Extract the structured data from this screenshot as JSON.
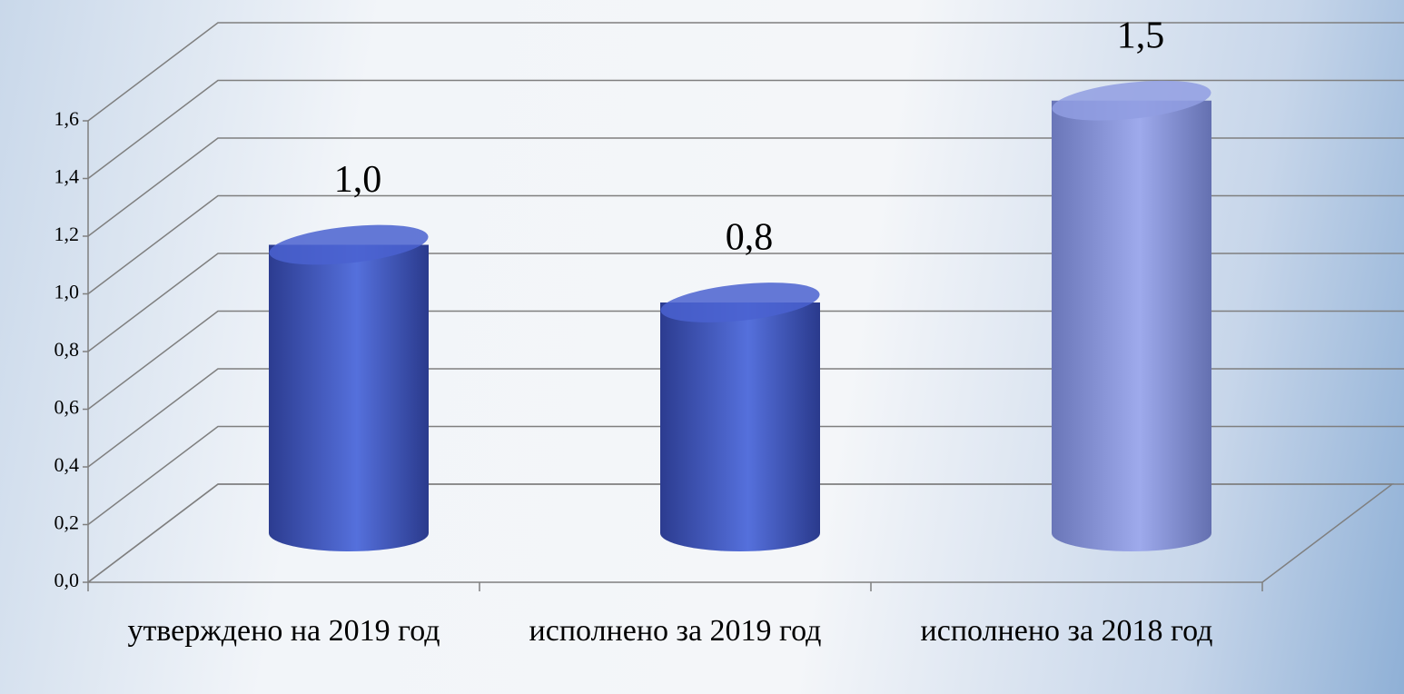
{
  "chart_data": {
    "type": "bar3d",
    "categories": [
      "утверждено на 2019 год",
      "исполнено за 2019 год",
      "исполнено за 2018 год"
    ],
    "values": [
      1.0,
      0.8,
      1.5
    ],
    "value_labels": [
      "1,0",
      "0,8",
      "1,5"
    ],
    "colors": [
      "#4a62d0",
      "#4a62d0",
      "#919de2"
    ],
    "ylim": [
      0,
      1.6
    ],
    "yticks": [
      {
        "value": 0,
        "label": "0,0"
      },
      {
        "value": 0.2,
        "label": "0,2"
      },
      {
        "value": 0.4,
        "label": "0,4"
      },
      {
        "value": 0.6,
        "label": "0,6"
      },
      {
        "value": 0.8,
        "label": "0,8"
      },
      {
        "value": 1.0,
        "label": "1,0"
      },
      {
        "value": 1.2,
        "label": "1,2"
      },
      {
        "value": 1.4,
        "label": "1,4"
      },
      {
        "value": 1.6,
        "label": "1,6"
      }
    ],
    "grid": true
  }
}
